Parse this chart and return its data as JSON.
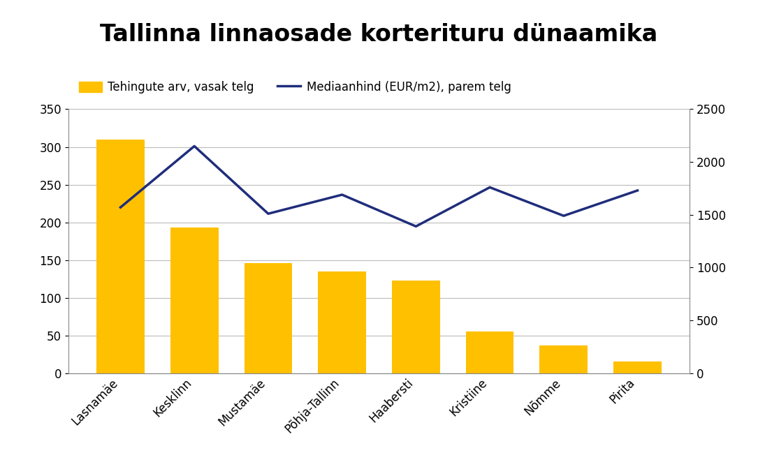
{
  "title": "Tallinna linnaosade korterituru dünaamika",
  "categories": [
    "Lasnamäe",
    "Kesklinn",
    "Mustamäe",
    "Põhja-Tallinn",
    "Haabersti",
    "Kristiine",
    "Nõmme",
    "Pirita"
  ],
  "bar_values": [
    310,
    193,
    146,
    135,
    123,
    55,
    37,
    15
  ],
  "line_values": [
    1570,
    2150,
    1510,
    1690,
    1390,
    1760,
    1490,
    1730
  ],
  "bar_color": "#FFC000",
  "line_color": "#1F2D7B",
  "bar_label": "Tehingute arv, vasak telg",
  "line_label": "Mediaanhind (EUR/m2), parem telg",
  "left_ylim": [
    0,
    350
  ],
  "left_yticks": [
    0,
    50,
    100,
    150,
    200,
    250,
    300,
    350
  ],
  "right_ylim": [
    0,
    2500
  ],
  "right_yticks": [
    0,
    500,
    1000,
    1500,
    2000,
    2500
  ],
  "title_fontsize": 24,
  "legend_fontsize": 12,
  "tick_fontsize": 12,
  "background_color": "#ffffff",
  "line_width": 2.5,
  "bar_width": 0.65,
  "grid_color": "#bbbbbb",
  "spine_color": "#888888"
}
